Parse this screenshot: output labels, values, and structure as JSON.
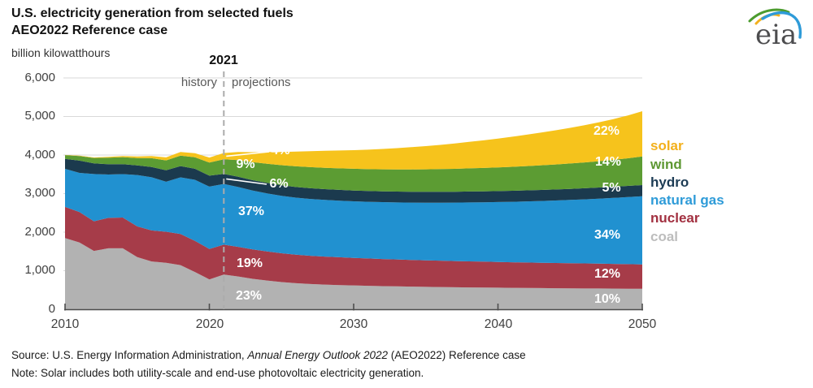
{
  "header": {
    "title_line1": "U.S. electricity generation from selected fuels",
    "title_line2": "AEO2022 Reference case",
    "units": "billion kilowatthours"
  },
  "logo": {
    "text": "eia"
  },
  "axis": {
    "y_ticks": [
      "6,000",
      "5,000",
      "4,000",
      "3,000",
      "2,000",
      "1,000",
      "0"
    ],
    "x_ticks": [
      "2010",
      "2020",
      "2030",
      "2040",
      "2050"
    ]
  },
  "legend": {
    "items": [
      {
        "label": "solar",
        "color": "#F3B01B"
      },
      {
        "label": "wind",
        "color": "#5D9732"
      },
      {
        "label": "hydro",
        "color": "#1D3C55"
      },
      {
        "label": "natural gas",
        "color": "#2E9BD8"
      },
      {
        "label": "nuclear",
        "color": "#A23040"
      },
      {
        "label": "coal",
        "color": "#BDBDBD"
      }
    ]
  },
  "footer": {
    "source_prefix": "Source: U.S. Energy Information Administration, ",
    "source_italic": "Annual Energy Outlook 2022",
    "source_suffix": " (AEO2022) Reference case",
    "note": "Note: Solar includes both utility-scale and end-use photovoltaic electricity generation."
  },
  "chart_data": {
    "type": "area",
    "stacked": true,
    "title": "U.S. electricity generation from selected fuels",
    "subtitle": "AEO2022 Reference case",
    "ylabel": "billion kilowatthours",
    "ylim": [
      0,
      6000
    ],
    "y_tick_step": 1000,
    "grid": true,
    "history_end_year": 2021,
    "annotations": {
      "marker_year": "2021",
      "history_label": "history",
      "projections_label": "projections"
    },
    "shares_2021": {
      "solar": "4%",
      "wind": "9%",
      "hydro": "6%",
      "natural_gas": "37%",
      "nuclear": "19%",
      "coal": "23%"
    },
    "shares_2050": {
      "solar": "22%",
      "wind": "14%",
      "hydro": "5%",
      "natural_gas": "34%",
      "nuclear": "12%",
      "coal": "10%"
    },
    "x": [
      2010,
      2011,
      2012,
      2013,
      2014,
      2015,
      2016,
      2017,
      2018,
      2019,
      2020,
      2021,
      2022,
      2023,
      2024,
      2025,
      2026,
      2027,
      2028,
      2029,
      2030,
      2031,
      2032,
      2033,
      2034,
      2035,
      2036,
      2037,
      2038,
      2039,
      2040,
      2041,
      2042,
      2043,
      2044,
      2045,
      2046,
      2047,
      2048,
      2049,
      2050
    ],
    "series": [
      {
        "id": "coal",
        "name": "coal",
        "color": "#B2B2B2",
        "values": [
          1847,
          1733,
          1514,
          1581,
          1582,
          1352,
          1239,
          1206,
          1146,
          966,
          774,
          898,
          850,
          790,
          745,
          705,
          675,
          655,
          640,
          628,
          618,
          608,
          600,
          593,
          587,
          581,
          576,
          571,
          567,
          563,
          559,
          555,
          552,
          549,
          546,
          543,
          540,
          538,
          536,
          533,
          530
        ]
      },
      {
        "id": "nuclear",
        "name": "nuclear",
        "color": "#A63C49",
        "values": [
          807,
          790,
          769,
          789,
          797,
          797,
          806,
          805,
          807,
          809,
          790,
          778,
          770,
          762,
          754,
          747,
          740,
          733,
          727,
          721,
          715,
          709,
          704,
          699,
          694,
          689,
          684,
          680,
          676,
          672,
          668,
          664,
          661,
          658,
          655,
          652,
          649,
          645,
          641,
          637,
          632
        ]
      },
      {
        "id": "natural_gas",
        "name": "natural gas",
        "color": "#2191D0",
        "values": [
          988,
          1013,
          1225,
          1124,
          1126,
          1333,
          1378,
          1296,
          1468,
          1582,
          1617,
          1575,
          1550,
          1525,
          1505,
          1490,
          1480,
          1474,
          1470,
          1468,
          1468,
          1470,
          1474,
          1479,
          1486,
          1494,
          1504,
          1515,
          1527,
          1540,
          1554,
          1569,
          1585,
          1602,
          1620,
          1640,
          1662,
          1686,
          1712,
          1740,
          1770
        ]
      },
      {
        "id": "hydro",
        "name": "hydro",
        "color": "#1B3A4E",
        "values": [
          260,
          319,
          276,
          269,
          259,
          249,
          268,
          300,
          292,
          288,
          285,
          260,
          268,
          271,
          273,
          275,
          276,
          277,
          278,
          279,
          280,
          280,
          281,
          281,
          282,
          282,
          283,
          283,
          284,
          284,
          285,
          285,
          286,
          286,
          287,
          287,
          288,
          288,
          289,
          289,
          290
        ]
      },
      {
        "id": "wind",
        "name": "wind",
        "color": "#5C9C33",
        "values": [
          95,
          120,
          141,
          168,
          182,
          191,
          227,
          254,
          273,
          295,
          338,
          378,
          430,
          468,
          498,
          520,
          536,
          547,
          554,
          559,
          563,
          567,
          571,
          575,
          579,
          583,
          588,
          594,
          600,
          607,
          614,
          622,
          630,
          639,
          648,
          658,
          670,
          683,
          697,
          716,
          740
        ]
      },
      {
        "id": "solar",
        "name": "solar",
        "color": "#F6C31C",
        "values": [
          5,
          8,
          12,
          20,
          29,
          40,
          55,
          77,
          93,
          107,
          131,
          164,
          212,
          258,
          302,
          344,
          383,
          414,
          440,
          462,
          482,
          504,
          527,
          551,
          576,
          602,
          629,
          657,
          686,
          716,
          748,
          781,
          815,
          850,
          887,
          925,
          966,
          1010,
          1058,
          1112,
          1175
        ]
      }
    ]
  }
}
